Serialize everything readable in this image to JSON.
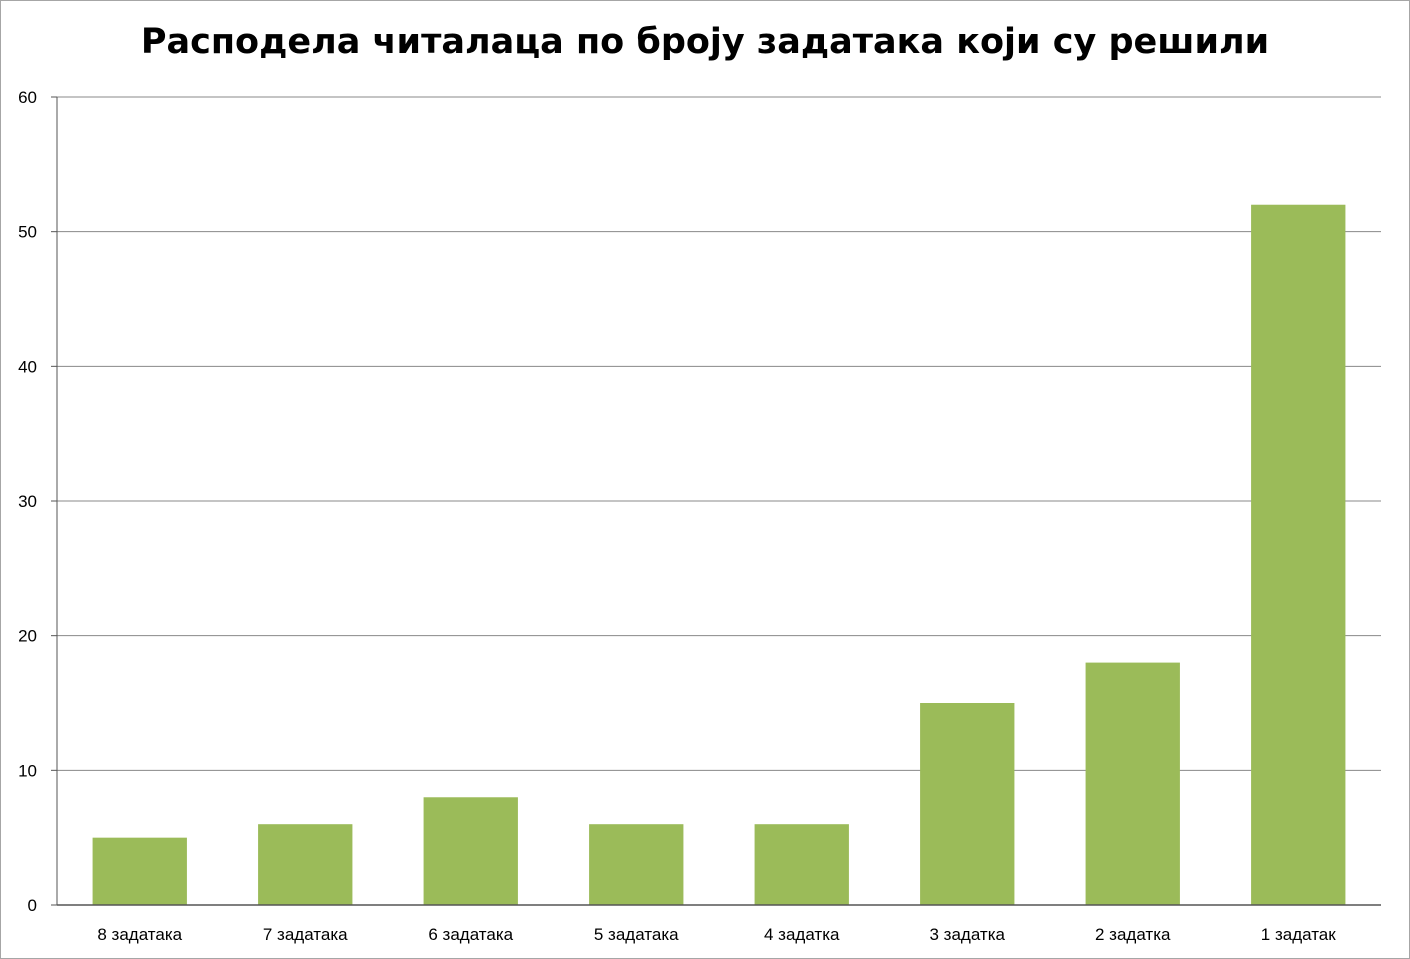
{
  "chart_data": {
    "type": "bar",
    "title": "Расподела читалаца по броју задатака који су решили",
    "xlabel": "",
    "ylabel": "",
    "categories": [
      "8 задатака",
      "7 задатака",
      "6 задатака",
      "5 задатака",
      "4 задатка",
      "3 задатка",
      "2 задатка",
      "1 задатак"
    ],
    "values": [
      5,
      6,
      8,
      6,
      6,
      15,
      18,
      52
    ],
    "ylim": [
      0,
      60
    ],
    "yticks": [
      "0",
      "10",
      "20",
      "30",
      "40",
      "50",
      "60"
    ],
    "grid": true,
    "legend": "none",
    "colors": {
      "bar": "#9bbb59",
      "grid": "#888888",
      "axis": "#555555"
    }
  }
}
